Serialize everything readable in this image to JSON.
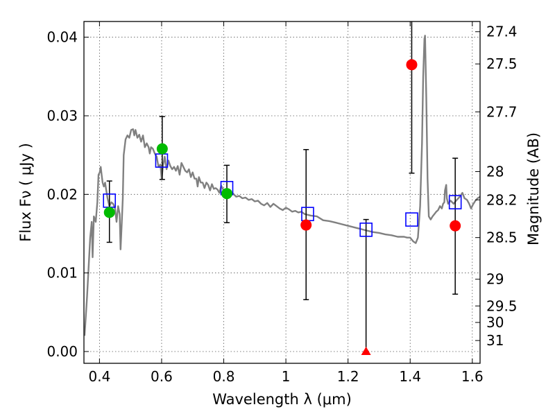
{
  "chart_data": {
    "type": "scatter",
    "xlabel": "Wavelength  λ (μm)",
    "ylabel": "Flux  Fν  ( μJy )",
    "y2label": "Magnitude (AB)",
    "xlim": [
      0.35,
      1.625
    ],
    "ylim": [
      -0.0015,
      0.042
    ],
    "grid": true,
    "x_ticks": [
      {
        "value": 0.4,
        "label": "0.4"
      },
      {
        "value": 0.6,
        "label": "0.6"
      },
      {
        "value": 0.8,
        "label": "0.8"
      },
      {
        "value": 1.0,
        "label": "1"
      },
      {
        "value": 1.2,
        "label": "1.2"
      },
      {
        "value": 1.4,
        "label": "1.4"
      },
      {
        "value": 1.6,
        "label": "1.6"
      }
    ],
    "y_ticks": [
      {
        "value": 0.0,
        "label": "0.00"
      },
      {
        "value": 0.01,
        "label": "0.01"
      },
      {
        "value": 0.02,
        "label": "0.02"
      },
      {
        "value": 0.03,
        "label": "0.03"
      },
      {
        "value": 0.04,
        "label": "0.04"
      }
    ],
    "mag_ticks": [
      {
        "flux": 0.0407,
        "label": "27.4"
      },
      {
        "flux": 0.0366,
        "label": "27.5"
      },
      {
        "flux": 0.0305,
        "label": "27.7"
      },
      {
        "flux": 0.0229,
        "label": "28"
      },
      {
        "flux": 0.0193,
        "label": "28.2"
      },
      {
        "flux": 0.0145,
        "label": "28.5"
      },
      {
        "flux": 0.0092,
        "label": "29"
      },
      {
        "flux": 0.0058,
        "label": "29.5"
      },
      {
        "flux": 0.0037,
        "label": "30"
      },
      {
        "flux": 0.0014,
        "label": "31"
      }
    ],
    "series": [
      {
        "kind": "model_spectrum",
        "color": "#808080",
        "points": [
          [
            0.352,
            0.002
          ],
          [
            0.36,
            0.007
          ],
          [
            0.37,
            0.0145
          ],
          [
            0.375,
            0.0165
          ],
          [
            0.378,
            0.012
          ],
          [
            0.382,
            0.0172
          ],
          [
            0.388,
            0.0165
          ],
          [
            0.393,
            0.019
          ],
          [
            0.397,
            0.0225
          ],
          [
            0.401,
            0.0228
          ],
          [
            0.404,
            0.0235
          ],
          [
            0.407,
            0.0225
          ],
          [
            0.41,
            0.0215
          ],
          [
            0.414,
            0.021
          ],
          [
            0.418,
            0.0215
          ],
          [
            0.422,
            0.0205
          ],
          [
            0.426,
            0.0195
          ],
          [
            0.432,
            0.0185
          ],
          [
            0.438,
            0.019
          ],
          [
            0.444,
            0.0188
          ],
          [
            0.45,
            0.0182
          ],
          [
            0.455,
            0.0165
          ],
          [
            0.46,
            0.0185
          ],
          [
            0.465,
            0.0175
          ],
          [
            0.468,
            0.013
          ],
          [
            0.472,
            0.0165
          ],
          [
            0.475,
            0.0195
          ],
          [
            0.478,
            0.025
          ],
          [
            0.484,
            0.027
          ],
          [
            0.49,
            0.0275
          ],
          [
            0.496,
            0.0272
          ],
          [
            0.502,
            0.0282
          ],
          [
            0.508,
            0.0283
          ],
          [
            0.512,
            0.0275
          ],
          [
            0.516,
            0.0282
          ],
          [
            0.522,
            0.0272
          ],
          [
            0.528,
            0.0276
          ],
          [
            0.534,
            0.0267
          ],
          [
            0.54,
            0.0275
          ],
          [
            0.546,
            0.026
          ],
          [
            0.552,
            0.0265
          ],
          [
            0.558,
            0.026
          ],
          [
            0.562,
            0.0252
          ],
          [
            0.566,
            0.026
          ],
          [
            0.572,
            0.0258
          ],
          [
            0.578,
            0.0252
          ],
          [
            0.584,
            0.0248
          ],
          [
            0.59,
            0.0235
          ],
          [
            0.596,
            0.0238
          ],
          [
            0.6,
            0.022
          ],
          [
            0.604,
            0.0235
          ],
          [
            0.61,
            0.0248
          ],
          [
            0.616,
            0.0232
          ],
          [
            0.622,
            0.0243
          ],
          [
            0.628,
            0.0236
          ],
          [
            0.634,
            0.0232
          ],
          [
            0.64,
            0.0235
          ],
          [
            0.646,
            0.023
          ],
          [
            0.652,
            0.0236
          ],
          [
            0.658,
            0.0225
          ],
          [
            0.664,
            0.024
          ],
          [
            0.67,
            0.0235
          ],
          [
            0.676,
            0.023
          ],
          [
            0.682,
            0.0228
          ],
          [
            0.688,
            0.0232
          ],
          [
            0.694,
            0.0222
          ],
          [
            0.7,
            0.0228
          ],
          [
            0.706,
            0.022
          ],
          [
            0.712,
            0.022
          ],
          [
            0.716,
            0.021
          ],
          [
            0.72,
            0.0222
          ],
          [
            0.726,
            0.0215
          ],
          [
            0.732,
            0.0215
          ],
          [
            0.738,
            0.0208
          ],
          [
            0.744,
            0.0215
          ],
          [
            0.75,
            0.0212
          ],
          [
            0.756,
            0.0205
          ],
          [
            0.762,
            0.0213
          ],
          [
            0.768,
            0.0207
          ],
          [
            0.774,
            0.0208
          ],
          [
            0.78,
            0.0206
          ],
          [
            0.786,
            0.0202
          ],
          [
            0.792,
            0.0211
          ],
          [
            0.8,
            0.0205
          ],
          [
            0.81,
            0.0203
          ],
          [
            0.82,
            0.0202
          ],
          [
            0.83,
            0.0201
          ],
          [
            0.84,
            0.0197
          ],
          [
            0.85,
            0.0198
          ],
          [
            0.86,
            0.0195
          ],
          [
            0.87,
            0.0196
          ],
          [
            0.88,
            0.0193
          ],
          [
            0.89,
            0.0194
          ],
          [
            0.9,
            0.0191
          ],
          [
            0.91,
            0.0192
          ],
          [
            0.92,
            0.0188
          ],
          [
            0.93,
            0.0186
          ],
          [
            0.94,
            0.0189
          ],
          [
            0.95,
            0.0184
          ],
          [
            0.96,
            0.0188
          ],
          [
            0.97,
            0.0185
          ],
          [
            0.98,
            0.0182
          ],
          [
            0.99,
            0.018
          ],
          [
            1.0,
            0.0183
          ],
          [
            1.01,
            0.0181
          ],
          [
            1.02,
            0.0178
          ],
          [
            1.03,
            0.0179
          ],
          [
            1.04,
            0.0177
          ],
          [
            1.05,
            0.0178
          ],
          [
            1.06,
            0.0175
          ],
          [
            1.08,
            0.0173
          ],
          [
            1.1,
            0.0172
          ],
          [
            1.12,
            0.0167
          ],
          [
            1.14,
            0.0166
          ],
          [
            1.16,
            0.0164
          ],
          [
            1.18,
            0.0162
          ],
          [
            1.2,
            0.016
          ],
          [
            1.22,
            0.0158
          ],
          [
            1.24,
            0.0156
          ],
          [
            1.26,
            0.0154
          ],
          [
            1.28,
            0.0152
          ],
          [
            1.3,
            0.0151
          ],
          [
            1.32,
            0.0149
          ],
          [
            1.34,
            0.0148
          ],
          [
            1.36,
            0.0146
          ],
          [
            1.38,
            0.0146
          ],
          [
            1.39,
            0.0145
          ],
          [
            1.4,
            0.0145
          ],
          [
            1.41,
            0.014
          ],
          [
            1.418,
            0.0138
          ],
          [
            1.425,
            0.0145
          ],
          [
            1.432,
            0.0185
          ],
          [
            1.438,
            0.0265
          ],
          [
            1.442,
            0.035
          ],
          [
            1.446,
            0.0398
          ],
          [
            1.448,
            0.0402
          ],
          [
            1.452,
            0.0322
          ],
          [
            1.456,
            0.022
          ],
          [
            1.46,
            0.0172
          ],
          [
            1.466,
            0.0168
          ],
          [
            1.472,
            0.0172
          ],
          [
            1.478,
            0.0175
          ],
          [
            1.484,
            0.0178
          ],
          [
            1.49,
            0.018
          ],
          [
            1.496,
            0.0185
          ],
          [
            1.502,
            0.0182
          ],
          [
            1.506,
            0.0188
          ],
          [
            1.51,
            0.019
          ],
          [
            1.512,
            0.0205
          ],
          [
            1.516,
            0.0212
          ],
          [
            1.518,
            0.0195
          ],
          [
            1.522,
            0.0188
          ],
          [
            1.53,
            0.0192
          ],
          [
            1.54,
            0.0188
          ],
          [
            1.55,
            0.0193
          ],
          [
            1.56,
            0.0197
          ],
          [
            1.568,
            0.0202
          ],
          [
            1.575,
            0.0195
          ],
          [
            1.583,
            0.0193
          ],
          [
            1.59,
            0.0188
          ],
          [
            1.596,
            0.0182
          ],
          [
            1.602,
            0.0187
          ],
          [
            1.61,
            0.0192
          ],
          [
            1.617,
            0.0195
          ],
          [
            1.625,
            0.0197
          ]
        ]
      },
      {
        "kind": "model_photometry",
        "marker": "open-square",
        "color": "#0000ff",
        "points": [
          [
            0.432,
            0.0192
          ],
          [
            0.6,
            0.0243
          ],
          [
            0.81,
            0.0208
          ],
          [
            1.07,
            0.0175
          ],
          [
            1.258,
            0.0155
          ],
          [
            1.405,
            0.0168
          ],
          [
            1.545,
            0.019
          ]
        ]
      },
      {
        "kind": "observed_detection",
        "marker": "filled-circle",
        "color": "#00bb00",
        "points": [
          {
            "x": 0.432,
            "y": 0.0177,
            "err_low": 0.0038,
            "err_high": 0.004
          },
          {
            "x": 0.602,
            "y": 0.0258,
            "err_low": 0.0039,
            "err_high": 0.0041
          },
          {
            "x": 0.81,
            "y": 0.0201,
            "err_low": 0.0037,
            "err_high": 0.0036
          }
        ]
      },
      {
        "kind": "observed_low_sn",
        "marker": "filled-circle",
        "color": "#ff0000",
        "points": [
          {
            "x": 1.065,
            "y": 0.0161,
            "err_low": 0.0095,
            "err_high": 0.0096
          },
          {
            "x": 1.405,
            "y": 0.0365,
            "err_low": 0.0138,
            "err_high": 0.0065
          },
          {
            "x": 1.545,
            "y": 0.016,
            "err_low": 0.0087,
            "err_high": 0.0086
          }
        ]
      },
      {
        "kind": "observed_upper_limit",
        "marker": "filled-triangle",
        "color": "#ff0000",
        "points": [
          {
            "x": 1.258,
            "y": 0.0,
            "err_low": 0.0,
            "err_high": 0.0168
          }
        ]
      }
    ]
  }
}
